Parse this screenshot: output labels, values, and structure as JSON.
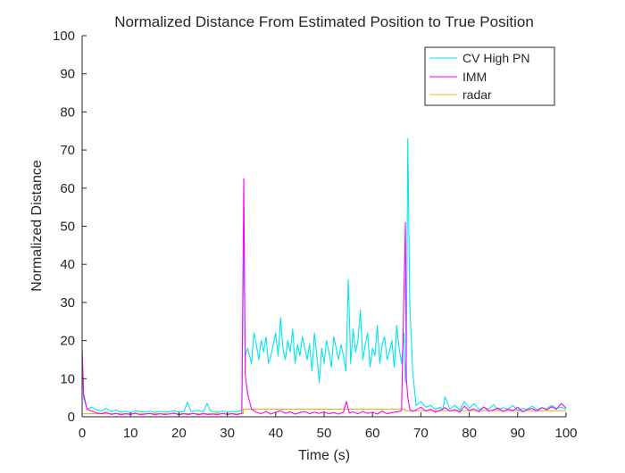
{
  "chart_data": {
    "type": "line",
    "title": "Normalized Distance From Estimated Position to True Position",
    "xlabel": "Time (s)",
    "ylabel": "Normalized Distance",
    "xlim": [
      0,
      100
    ],
    "ylim": [
      0,
      100
    ],
    "xticks": [
      0,
      10,
      20,
      30,
      40,
      50,
      60,
      70,
      80,
      90,
      100
    ],
    "yticks": [
      0,
      10,
      20,
      30,
      40,
      50,
      60,
      70,
      80,
      90,
      100
    ],
    "legend_position": "top-right",
    "series": [
      {
        "name": "CV High PN",
        "color": "#00e5ee",
        "x": [
          0,
          0.3,
          1,
          2,
          3,
          4,
          5,
          6,
          7,
          8,
          9,
          10,
          11,
          12,
          13,
          14,
          15,
          16,
          17,
          18,
          19,
          20,
          21,
          21.8,
          22.5,
          23,
          24,
          25,
          25.8,
          26.5,
          27,
          28,
          29,
          30,
          31,
          32,
          33,
          33.4,
          33.7,
          34.2,
          35,
          35.5,
          36,
          36.5,
          37,
          37.5,
          38,
          38.5,
          39,
          39.5,
          40,
          40.5,
          41,
          41.5,
          42,
          42.5,
          43,
          43.5,
          44,
          44.5,
          45,
          45.5,
          46,
          46.5,
          47,
          47.5,
          48,
          48.5,
          49,
          49.5,
          50,
          50.5,
          51,
          51.5,
          52,
          52.5,
          53,
          53.5,
          54,
          54.5,
          55,
          55.5,
          56,
          56.5,
          57,
          57.5,
          58,
          58.5,
          59,
          59.5,
          60,
          60.5,
          61,
          61.5,
          62,
          62.5,
          63,
          63.5,
          64,
          64.5,
          65,
          65.5,
          66,
          66.5,
          66.8,
          67,
          67.3,
          67.7,
          68.3,
          69,
          70,
          71,
          72,
          73,
          74,
          74.5,
          75,
          76,
          77,
          78,
          79,
          80,
          81,
          82,
          83,
          84,
          85,
          86,
          87,
          88,
          89,
          90,
          91,
          92,
          93,
          94,
          95,
          96,
          97,
          98,
          99,
          100
        ],
        "y": [
          17,
          5,
          2,
          2.5,
          1.8,
          1.5,
          2.2,
          1.3,
          1.8,
          1.2,
          1.5,
          1.1,
          1.6,
          1.3,
          1.2,
          1.5,
          1.1,
          1.4,
          1.2,
          1.3,
          1.6,
          1.2,
          1.4,
          3.8,
          1.3,
          1.5,
          1.7,
          1.2,
          3.5,
          1.6,
          1.3,
          1.1,
          1.5,
          1.2,
          1.4,
          1.3,
          1.8,
          50,
          16,
          18,
          14,
          22,
          19,
          15,
          20,
          17,
          21,
          14,
          16,
          19,
          22,
          16,
          26,
          18,
          15,
          20,
          17,
          23,
          14,
          19,
          16,
          21,
          18,
          15,
          19,
          12,
          22,
          16,
          9,
          18,
          14,
          20,
          17,
          13,
          21,
          18,
          15,
          19,
          16,
          12,
          36,
          14,
          23,
          17,
          20,
          28,
          15,
          19,
          22,
          13,
          18,
          16,
          24,
          14,
          19,
          21,
          15,
          17,
          20,
          13,
          24,
          18,
          14,
          22,
          9,
          16,
          73,
          30,
          12,
          3,
          4,
          2.5,
          3,
          2,
          2.5,
          1.8,
          5.2,
          2,
          3,
          1.8,
          4,
          2.2,
          3.5,
          1.9,
          2.5,
          2,
          3.2,
          1.8,
          2.4,
          2,
          3,
          1.7,
          2.2,
          2,
          2.8,
          1.9,
          2.4,
          2.1,
          3,
          2.2,
          2.5,
          2
        ]
      },
      {
        "name": "IMM",
        "color": "#ff00ff",
        "x": [
          0,
          0.3,
          1,
          2,
          3,
          4,
          5,
          6,
          7,
          8,
          9,
          10,
          11,
          12,
          13,
          14,
          15,
          16,
          17,
          18,
          19,
          20,
          21,
          22,
          23,
          24,
          25,
          26,
          27,
          28,
          29,
          30,
          31,
          32,
          33,
          33.4,
          33.7,
          34.2,
          35,
          36,
          37,
          38,
          39,
          40,
          41,
          42,
          43,
          44,
          45,
          46,
          47,
          48,
          49,
          50,
          51,
          52,
          53,
          54,
          54.6,
          55.2,
          56,
          57,
          58,
          59,
          60,
          61,
          62,
          63,
          64,
          65,
          66,
          66.8,
          67,
          67.3,
          67.7,
          68.3,
          69,
          70,
          71,
          72,
          73,
          74,
          75,
          76,
          77,
          78,
          79,
          80,
          81,
          82,
          83,
          84,
          85,
          86,
          87,
          88,
          89,
          90,
          91,
          92,
          93,
          94,
          95,
          96,
          97,
          98,
          99,
          100
        ],
        "y": [
          18,
          6,
          2,
          1.5,
          1,
          0.8,
          1.2,
          0.6,
          0.9,
          0.5,
          0.8,
          0.6,
          1,
          0.5,
          0.7,
          0.9,
          0.5,
          0.8,
          0.6,
          0.7,
          1,
          0.5,
          0.8,
          0.6,
          0.9,
          0.5,
          0.8,
          0.6,
          0.7,
          0.5,
          0.9,
          0.6,
          0.8,
          0.5,
          1,
          62.5,
          11,
          6,
          2,
          1.2,
          0.8,
          1.4,
          0.7,
          1.2,
          1.6,
          0.9,
          1.3,
          0.7,
          1.1,
          1.4,
          0.8,
          1.2,
          0.9,
          1.3,
          0.8,
          1.1,
          0.7,
          1.2,
          4,
          1,
          1.3,
          0.8,
          1.4,
          0.9,
          1.2,
          0.7,
          1.5,
          0.8,
          1.1,
          1.3,
          1.6,
          51,
          10,
          5,
          2,
          1.4,
          1.8,
          2.5,
          1.5,
          2,
          1.2,
          1.7,
          2.4,
          1.5,
          1.9,
          1.2,
          2.8,
          1.6,
          2.1,
          1.3,
          2.6,
          1.5,
          1.8,
          2.3,
          1.4,
          2,
          1.6,
          2.5,
          1.3,
          1.9,
          2.2,
          1.5,
          2.4,
          1.8,
          2.6,
          2,
          3.5,
          2.3
        ]
      },
      {
        "name": "radar",
        "color": "#edb120",
        "x": [
          0,
          33.3,
          33.3,
          66.7,
          66.7,
          100
        ],
        "y": [
          0.8,
          0.8,
          2,
          2,
          1.6,
          1.6
        ]
      }
    ]
  }
}
